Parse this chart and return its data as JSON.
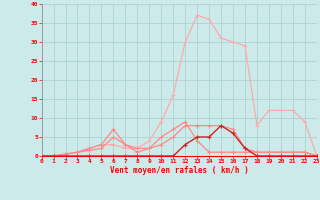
{
  "xlabel": "Vent moyen/en rafales ( km/h )",
  "background_color": "#cceaea",
  "grid_color": "#aacccc",
  "x_values": [
    0,
    1,
    2,
    3,
    4,
    5,
    6,
    7,
    8,
    9,
    10,
    11,
    12,
    13,
    14,
    15,
    16,
    17,
    18,
    19,
    20,
    21,
    22,
    23
  ],
  "curve_light1": [
    0,
    0,
    0.5,
    1,
    2,
    3,
    7,
    3,
    1,
    2,
    5,
    7,
    9,
    4,
    1,
    1,
    1,
    1,
    1,
    1,
    1,
    1,
    1,
    0
  ],
  "curve_light2": [
    0,
    0,
    0.5,
    1,
    1.5,
    2,
    5,
    3,
    2,
    2,
    3,
    5,
    8,
    8,
    8,
    8,
    7,
    2,
    1,
    1,
    1,
    1,
    1,
    0
  ],
  "curve_dark": [
    0,
    0,
    0,
    0,
    0,
    0,
    0,
    0,
    0,
    0,
    0,
    0,
    3,
    5,
    5,
    8,
    6,
    2,
    0,
    0,
    0,
    0,
    0,
    0
  ],
  "curve_main": [
    0,
    0,
    0.5,
    1,
    2,
    3,
    3,
    2,
    2,
    4,
    9,
    16,
    30,
    37,
    36,
    31,
    30,
    29,
    8,
    12,
    12,
    12,
    9,
    0
  ],
  "ylim": [
    0,
    40
  ],
  "xlim": [
    0,
    23
  ],
  "yticks": [
    0,
    5,
    10,
    15,
    20,
    25,
    30,
    35,
    40
  ],
  "xticks": [
    0,
    1,
    2,
    3,
    4,
    5,
    6,
    7,
    8,
    9,
    10,
    11,
    12,
    13,
    14,
    15,
    16,
    17,
    18,
    19,
    20,
    21,
    22,
    23
  ],
  "color_light": "#ffaaaa",
  "color_medium": "#ff8888",
  "color_dark": "#cc2222",
  "marker": "+"
}
